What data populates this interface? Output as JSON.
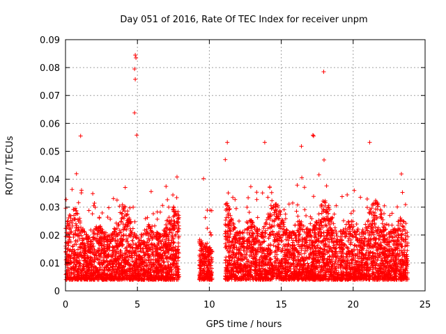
{
  "chart_data": {
    "type": "scatter",
    "title": "Day 051 of 2016, Rate Of TEC Index for receiver unpm",
    "xlabel": "GPS time / hours",
    "ylabel": "ROTI / TECUs",
    "xlim": [
      0,
      25
    ],
    "ylim": [
      0,
      0.09
    ],
    "xticks": [
      0,
      5,
      10,
      15,
      20,
      25
    ],
    "xtick_labels": [
      "0",
      "5",
      "10",
      "15",
      "20",
      "25"
    ],
    "yticks": [
      0,
      0.01,
      0.02,
      0.03,
      0.04,
      0.05,
      0.06,
      0.07,
      0.08,
      0.09
    ],
    "ytick_labels": [
      "0",
      "0.01",
      "0.02",
      "0.03",
      "0.04",
      "0.05",
      "0.06",
      "0.07",
      "0.08",
      "0.09"
    ],
    "grid": true,
    "marker": "+",
    "marker_color": "#ff0000",
    "series": [
      {
        "name": "ROTI",
        "note": "dense per-satellite samples; data gap ~7.9–9.3 h and ~10.2–11.1 h",
        "segments": [
          {
            "x_start": 0.0,
            "x_end": 7.9,
            "base": 0.013,
            "spread": 0.022
          },
          {
            "x_start": 9.3,
            "x_end": 10.2,
            "base": 0.013,
            "spread": 0.016
          },
          {
            "x_start": 11.1,
            "x_end": 23.8,
            "base": 0.014,
            "spread": 0.024
          }
        ],
        "outliers": [
          {
            "x": 4.85,
            "y": 0.0845
          },
          {
            "x": 4.9,
            "y": 0.0835
          },
          {
            "x": 4.8,
            "y": 0.0795
          },
          {
            "x": 4.85,
            "y": 0.0758
          },
          {
            "x": 4.8,
            "y": 0.0638
          },
          {
            "x": 4.95,
            "y": 0.0558
          },
          {
            "x": 1.05,
            "y": 0.0555
          },
          {
            "x": 17.95,
            "y": 0.0785
          },
          {
            "x": 17.2,
            "y": 0.0558
          },
          {
            "x": 17.25,
            "y": 0.0555
          },
          {
            "x": 13.85,
            "y": 0.0532
          },
          {
            "x": 11.25,
            "y": 0.0532
          },
          {
            "x": 21.15,
            "y": 0.0532
          },
          {
            "x": 16.4,
            "y": 0.0518
          },
          {
            "x": 9.6,
            "y": 0.0402
          },
          {
            "x": 7.75,
            "y": 0.0408
          }
        ]
      }
    ]
  }
}
